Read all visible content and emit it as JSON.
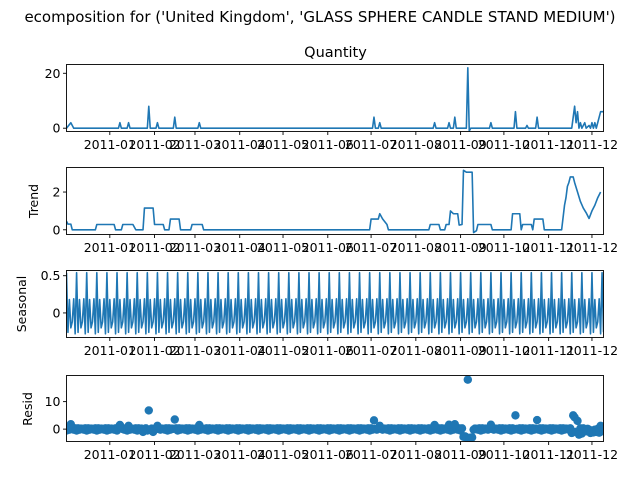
{
  "figure": {
    "suptitle": "ecomposition for ('United Kingdom', 'GLASS SPHERE CANDLE STAND MEDIUM')",
    "line_color": "#1f77b4"
  },
  "chart_data": [
    {
      "type": "line",
      "title": "Quantity",
      "ylabel": "",
      "ylim": [
        -1.2,
        23.2
      ],
      "yticks": [
        0,
        20
      ],
      "xlim": [
        "2010-12-02",
        "2011-12-09"
      ],
      "xticks": [
        "2011-01",
        "2011-02",
        "2011-03",
        "2011-04",
        "2011-05",
        "2011-06",
        "2011-07",
        "2011-08",
        "2011-09",
        "2011-10",
        "2011-11",
        "2011-12"
      ],
      "series": [
        {
          "values": [
            [
              "2010-12-02",
              0
            ],
            [
              "2010-12-05",
              2
            ],
            [
              "2010-12-07",
              0
            ],
            [
              "2011-01-07",
              0
            ],
            [
              "2011-01-08",
              2
            ],
            [
              "2011-01-09",
              0
            ],
            [
              "2011-01-13",
              0
            ],
            [
              "2011-01-14",
              2
            ],
            [
              "2011-01-15",
              0
            ],
            [
              "2011-01-27",
              0
            ],
            [
              "2011-01-28",
              8
            ],
            [
              "2011-01-29",
              0
            ],
            [
              "2011-02-02",
              0
            ],
            [
              "2011-02-03",
              2
            ],
            [
              "2011-02-04",
              0
            ],
            [
              "2011-02-14",
              0
            ],
            [
              "2011-02-15",
              4
            ],
            [
              "2011-02-16",
              0
            ],
            [
              "2011-03-03",
              0
            ],
            [
              "2011-03-04",
              2
            ],
            [
              "2011-03-05",
              0
            ],
            [
              "2011-07-02",
              0
            ],
            [
              "2011-07-03",
              4
            ],
            [
              "2011-07-04",
              0
            ],
            [
              "2011-07-06",
              0
            ],
            [
              "2011-07-07",
              2
            ],
            [
              "2011-07-08",
              0
            ],
            [
              "2011-08-13",
              0
            ],
            [
              "2011-08-14",
              2
            ],
            [
              "2011-08-15",
              0
            ],
            [
              "2011-08-23",
              0
            ],
            [
              "2011-08-24",
              2
            ],
            [
              "2011-08-25",
              0
            ],
            [
              "2011-08-27",
              0
            ],
            [
              "2011-08-28",
              4
            ],
            [
              "2011-08-29",
              0
            ],
            [
              "2011-09-05",
              0
            ],
            [
              "2011-09-06",
              22
            ],
            [
              "2011-09-07",
              -1
            ],
            [
              "2011-09-08",
              0
            ],
            [
              "2011-09-21",
              0
            ],
            [
              "2011-09-22",
              2
            ],
            [
              "2011-09-23",
              0
            ],
            [
              "2011-10-08",
              0
            ],
            [
              "2011-10-09",
              6
            ],
            [
              "2011-10-10",
              0
            ],
            [
              "2011-10-16",
              0
            ],
            [
              "2011-10-17",
              1
            ],
            [
              "2011-10-18",
              0
            ],
            [
              "2011-10-23",
              0
            ],
            [
              "2011-10-24",
              4
            ],
            [
              "2011-10-25",
              0
            ],
            [
              "2011-11-17",
              0
            ],
            [
              "2011-11-18",
              4
            ],
            [
              "2011-11-19",
              8
            ],
            [
              "2011-11-20",
              2
            ],
            [
              "2011-11-21",
              6
            ],
            [
              "2011-11-22",
              0
            ],
            [
              "2011-11-23",
              2
            ],
            [
              "2011-11-24",
              0
            ],
            [
              "2011-11-26",
              2
            ],
            [
              "2011-11-27",
              0
            ],
            [
              "2011-11-29",
              1
            ],
            [
              "2011-11-30",
              0
            ],
            [
              "2011-12-01",
              2
            ],
            [
              "2011-12-02",
              0
            ],
            [
              "2011-12-03",
              2
            ],
            [
              "2011-12-04",
              0
            ],
            [
              "2011-12-07",
              6
            ],
            [
              "2011-12-09",
              6
            ]
          ]
        }
      ]
    },
    {
      "type": "line",
      "title": "",
      "ylabel": "Trend",
      "ylim": [
        -0.25,
        3.3
      ],
      "yticks": [
        0,
        2
      ],
      "xlim": [
        "2010-12-02",
        "2011-12-09"
      ],
      "xticks": [
        "2011-01",
        "2011-02",
        "2011-03",
        "2011-04",
        "2011-05",
        "2011-06",
        "2011-07",
        "2011-08",
        "2011-09",
        "2011-10",
        "2011-11",
        "2011-12"
      ],
      "series": [
        {
          "values": [
            [
              "2010-12-02",
              0.45
            ],
            [
              "2010-12-03",
              0.3
            ],
            [
              "2010-12-05",
              0.3
            ],
            [
              "2010-12-06",
              0
            ],
            [
              "2010-12-22",
              0
            ],
            [
              "2010-12-23",
              0.28
            ],
            [
              "2011-01-04",
              0.28
            ],
            [
              "2011-01-05",
              0
            ],
            [
              "2011-01-09",
              0
            ],
            [
              "2011-01-10",
              0.28
            ],
            [
              "2011-01-17",
              0.28
            ],
            [
              "2011-01-19",
              0
            ],
            [
              "2011-01-24",
              0
            ],
            [
              "2011-01-25",
              1.15
            ],
            [
              "2011-01-31",
              1.15
            ],
            [
              "2011-02-01",
              0.28
            ],
            [
              "2011-02-07",
              0.28
            ],
            [
              "2011-02-08",
              0
            ],
            [
              "2011-02-11",
              0
            ],
            [
              "2011-02-12",
              0.57
            ],
            [
              "2011-02-18",
              0.57
            ],
            [
              "2011-02-19",
              0
            ],
            [
              "2011-02-26",
              0
            ],
            [
              "2011-02-27",
              0.28
            ],
            [
              "2011-03-06",
              0.28
            ],
            [
              "2011-03-07",
              0
            ],
            [
              "2011-06-30",
              0
            ],
            [
              "2011-07-01",
              0.57
            ],
            [
              "2011-07-06",
              0.57
            ],
            [
              "2011-07-07",
              0.85
            ],
            [
              "2011-07-09",
              0.57
            ],
            [
              "2011-07-12",
              0.28
            ],
            [
              "2011-07-13",
              0
            ],
            [
              "2011-08-10",
              0
            ],
            [
              "2011-08-11",
              0.28
            ],
            [
              "2011-08-17",
              0.28
            ],
            [
              "2011-08-18",
              0
            ],
            [
              "2011-08-21",
              0
            ],
            [
              "2011-08-22",
              0.28
            ],
            [
              "2011-08-24",
              0.28
            ],
            [
              "2011-08-25",
              1.0
            ],
            [
              "2011-08-27",
              0.85
            ],
            [
              "2011-08-30",
              0.85
            ],
            [
              "2011-08-31",
              0.25
            ],
            [
              "2011-09-02",
              0.28
            ],
            [
              "2011-09-03",
              3.15
            ],
            [
              "2011-09-05",
              3.05
            ],
            [
              "2011-09-09",
              3.05
            ],
            [
              "2011-09-10",
              -0.15
            ],
            [
              "2011-09-12",
              -0.05
            ],
            [
              "2011-09-13",
              0.28
            ],
            [
              "2011-09-22",
              0.28
            ],
            [
              "2011-09-23",
              0
            ],
            [
              "2011-10-06",
              0
            ],
            [
              "2011-10-07",
              0.85
            ],
            [
              "2011-10-12",
              0.85
            ],
            [
              "2011-10-13",
              0
            ],
            [
              "2011-10-14",
              0.28
            ],
            [
              "2011-10-20",
              0.28
            ],
            [
              "2011-10-21",
              0
            ],
            [
              "2011-10-22",
              0.57
            ],
            [
              "2011-10-28",
              0.57
            ],
            [
              "2011-10-29",
              0
            ],
            [
              "2011-11-10",
              0
            ],
            [
              "2011-11-12",
              1.3
            ],
            [
              "2011-11-13",
              1.7
            ],
            [
              "2011-11-14",
              2.3
            ],
            [
              "2011-11-15",
              2.5
            ],
            [
              "2011-11-16",
              2.8
            ],
            [
              "2011-11-18",
              2.8
            ],
            [
              "2011-11-19",
              2.5
            ],
            [
              "2011-11-21",
              2.0
            ],
            [
              "2011-11-23",
              1.5
            ],
            [
              "2011-11-25",
              1.15
            ],
            [
              "2011-11-27",
              0.9
            ],
            [
              "2011-11-29",
              0.6
            ],
            [
              "2011-12-01",
              1.0
            ],
            [
              "2011-12-03",
              1.3
            ],
            [
              "2011-12-05",
              1.7
            ],
            [
              "2011-12-07",
              2.0
            ]
          ]
        }
      ]
    },
    {
      "type": "line",
      "title": "",
      "ylabel": "Seasonal",
      "ylim": [
        -0.33,
        0.57
      ],
      "yticks": [
        0.0,
        0.5
      ],
      "xlim": [
        "2010-12-02",
        "2011-12-09"
      ],
      "xticks": [
        "2011-01",
        "2011-02",
        "2011-03",
        "2011-04",
        "2011-05",
        "2011-06",
        "2011-07",
        "2011-08",
        "2011-09",
        "2011-10",
        "2011-11",
        "2011-12"
      ],
      "seasonal_pattern": {
        "start": "2010-12-02",
        "end": "2011-12-09",
        "period_days": 7,
        "weekly_values": [
          0.54,
          -0.26,
          0.18,
          -0.2,
          -0.12,
          0.19,
          -0.28
        ]
      }
    },
    {
      "type": "scatter",
      "title": "",
      "ylabel": "Resid",
      "ylim": [
        -4.5,
        19.5
      ],
      "yticks": [
        0,
        10
      ],
      "xlim": [
        "2010-12-02",
        "2011-12-09"
      ],
      "xticks": [
        "2011-01",
        "2011-02",
        "2011-03",
        "2011-04",
        "2011-05",
        "2011-06",
        "2011-07",
        "2011-08",
        "2011-09",
        "2011-10",
        "2011-11",
        "2011-12"
      ],
      "baseline": {
        "start": "2010-12-02",
        "end": "2011-12-09",
        "weekly_values": [
          -0.5,
          0.3,
          -0.2,
          0.2,
          0.1,
          -0.2,
          0.3
        ]
      },
      "points": [
        [
          "2010-12-05",
          1.8
        ],
        [
          "2011-01-08",
          1.5
        ],
        [
          "2011-01-14",
          1.2
        ],
        [
          "2011-01-24",
          -1.0
        ],
        [
          "2011-01-28",
          6.8
        ],
        [
          "2011-01-31",
          -1.0
        ],
        [
          "2011-02-03",
          1.2
        ],
        [
          "2011-02-15",
          3.5
        ],
        [
          "2011-03-04",
          1.5
        ],
        [
          "2011-07-03",
          3.2
        ],
        [
          "2011-07-07",
          1.2
        ],
        [
          "2011-08-14",
          1.5
        ],
        [
          "2011-08-24",
          1.6
        ],
        [
          "2011-08-28",
          1.8
        ],
        [
          "2011-09-03",
          -2.8
        ],
        [
          "2011-09-04",
          -2.6
        ],
        [
          "2011-09-05",
          -3.0
        ],
        [
          "2011-09-06",
          18.0
        ],
        [
          "2011-09-07",
          -3.2
        ],
        [
          "2011-09-08",
          -3.1
        ],
        [
          "2011-09-09",
          -3.0
        ],
        [
          "2011-09-22",
          1.6
        ],
        [
          "2011-10-09",
          5.0
        ],
        [
          "2011-10-24",
          3.3
        ],
        [
          "2011-11-17",
          -1.4
        ],
        [
          "2011-11-18",
          5.0
        ],
        [
          "2011-11-19",
          4.3
        ],
        [
          "2011-11-20",
          -1.0
        ],
        [
          "2011-11-21",
          3.0
        ],
        [
          "2011-11-22",
          -2.0
        ],
        [
          "2011-11-24",
          -1.6
        ],
        [
          "2011-11-27",
          -0.8
        ],
        [
          "2011-11-30",
          -1.4
        ],
        [
          "2011-12-02",
          -1.2
        ],
        [
          "2011-12-04",
          -1.0
        ],
        [
          "2011-12-06",
          -1.3
        ],
        [
          "2011-12-07",
          1.2
        ],
        [
          "2011-12-09",
          -0.8
        ]
      ]
    }
  ]
}
